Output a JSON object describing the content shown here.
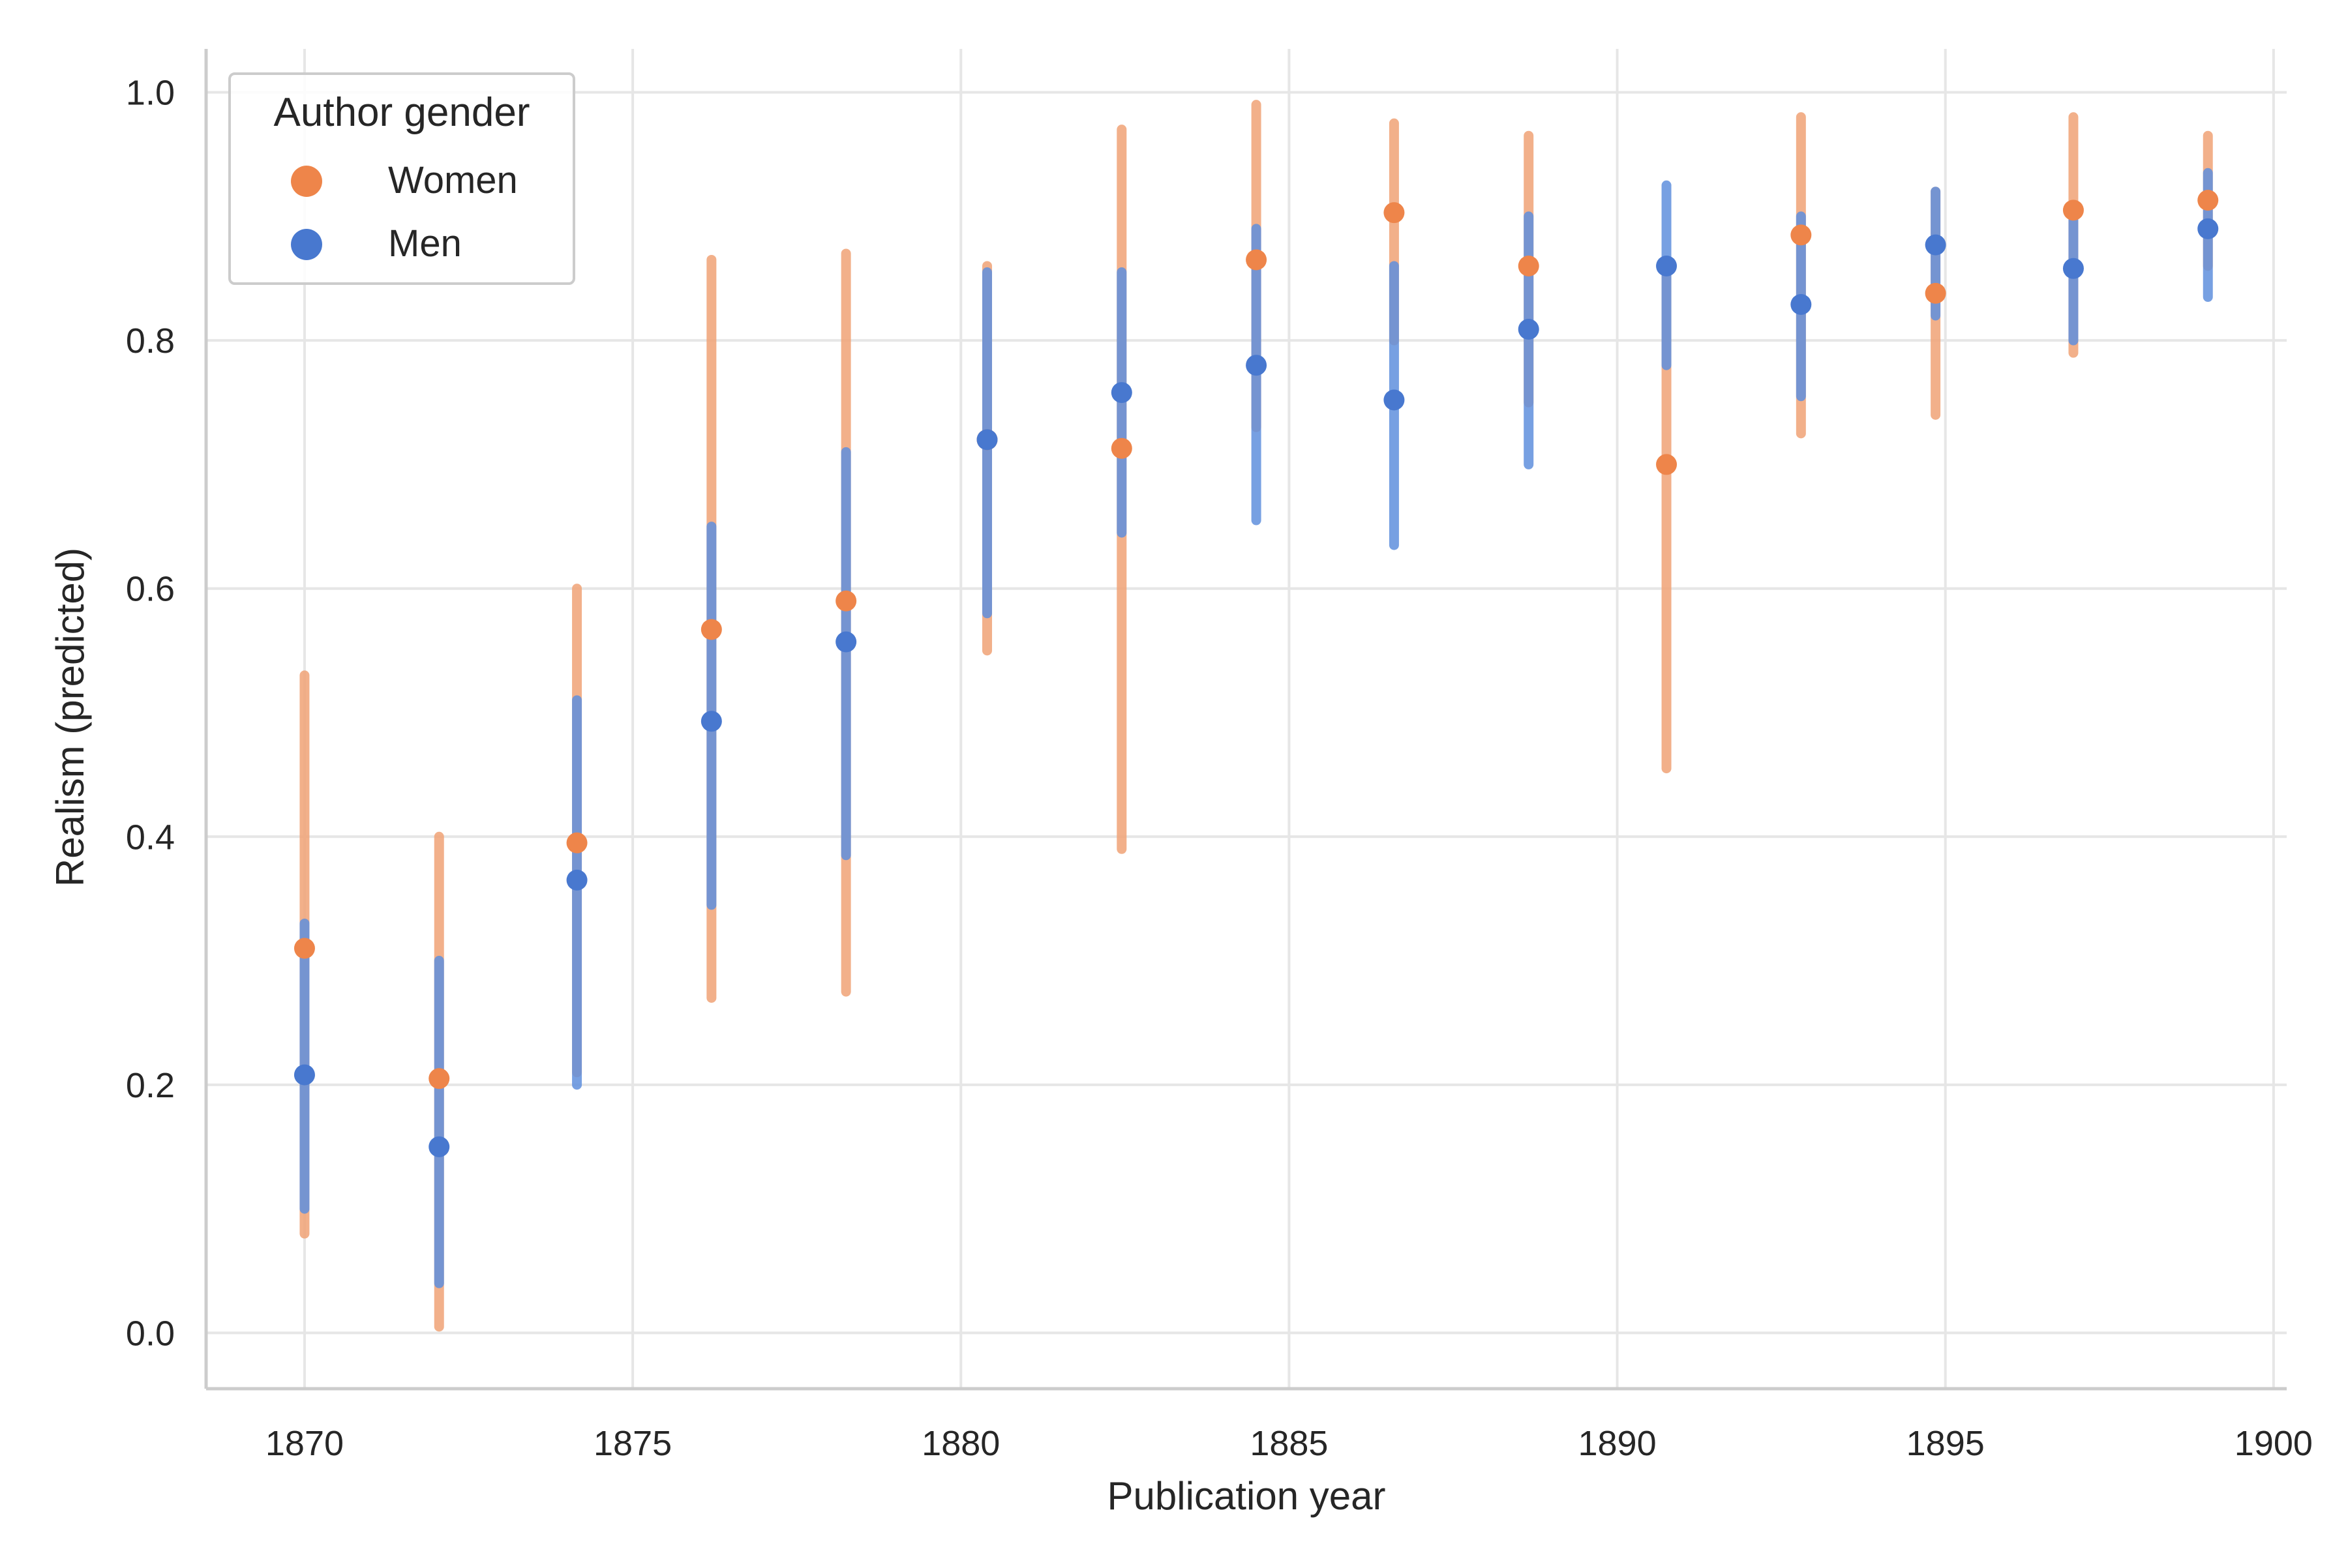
{
  "chart_data": {
    "type": "scatter",
    "title": "",
    "xlabel": "Publication year",
    "ylabel": "Realism (predicted)",
    "xlim": [
      1868.5,
      1900.2
    ],
    "ylim": [
      -0.045,
      1.035
    ],
    "xticks": [
      1870,
      1875,
      1880,
      1885,
      1890,
      1895,
      1900
    ],
    "yticks": [
      0.0,
      0.2,
      0.4,
      0.6,
      0.8,
      1.0
    ],
    "xtick_labels": [
      "1870",
      "1875",
      "1880",
      "1885",
      "1890",
      "1895",
      "1900"
    ],
    "ytick_labels": [
      "0.0",
      "0.2",
      "0.4",
      "0.6",
      "0.8",
      "1.0"
    ],
    "grid": true,
    "legend": {
      "title": "Author gender",
      "placement": "top-left"
    },
    "series": [
      {
        "name": "Women",
        "color": "#ee854a",
        "bar_color": "#f0a276",
        "points": [
          {
            "x": 1870.0,
            "y": 0.31,
            "lo": 0.08,
            "hi": 0.53
          },
          {
            "x": 1872.05,
            "y": 0.205,
            "lo": 0.005,
            "hi": 0.4
          },
          {
            "x": 1874.15,
            "y": 0.395,
            "lo": 0.21,
            "hi": 0.6
          },
          {
            "x": 1876.2,
            "y": 0.567,
            "lo": 0.27,
            "hi": 0.865
          },
          {
            "x": 1878.25,
            "y": 0.59,
            "lo": 0.275,
            "hi": 0.87
          },
          {
            "x": 1880.4,
            "y": 0.72,
            "lo": 0.55,
            "hi": 0.86
          },
          {
            "x": 1882.45,
            "y": 0.713,
            "lo": 0.39,
            "hi": 0.97
          },
          {
            "x": 1884.5,
            "y": 0.865,
            "lo": 0.73,
            "hi": 0.99
          },
          {
            "x": 1886.6,
            "y": 0.903,
            "lo": 0.8,
            "hi": 0.975
          },
          {
            "x": 1888.65,
            "y": 0.86,
            "lo": 0.75,
            "hi": 0.965
          },
          {
            "x": 1890.75,
            "y": 0.7,
            "lo": 0.455,
            "hi": 0.86
          },
          {
            "x": 1892.8,
            "y": 0.885,
            "lo": 0.725,
            "hi": 0.98
          },
          {
            "x": 1894.85,
            "y": 0.838,
            "lo": 0.74,
            "hi": 0.92
          },
          {
            "x": 1896.95,
            "y": 0.905,
            "lo": 0.79,
            "hi": 0.98
          },
          {
            "x": 1899.0,
            "y": 0.913,
            "lo": 0.86,
            "hi": 0.965
          }
        ]
      },
      {
        "name": "Men",
        "color": "#4878cf",
        "bar_color": "#5f8fdd",
        "points": [
          {
            "x": 1870.0,
            "y": 0.208,
            "lo": 0.1,
            "hi": 0.33
          },
          {
            "x": 1872.05,
            "y": 0.15,
            "lo": 0.04,
            "hi": 0.3
          },
          {
            "x": 1874.15,
            "y": 0.365,
            "lo": 0.2,
            "hi": 0.51
          },
          {
            "x": 1876.2,
            "y": 0.493,
            "lo": 0.345,
            "hi": 0.65
          },
          {
            "x": 1878.25,
            "y": 0.557,
            "lo": 0.385,
            "hi": 0.71
          },
          {
            "x": 1880.4,
            "y": 0.72,
            "lo": 0.58,
            "hi": 0.855
          },
          {
            "x": 1882.45,
            "y": 0.758,
            "lo": 0.645,
            "hi": 0.855
          },
          {
            "x": 1884.5,
            "y": 0.78,
            "lo": 0.655,
            "hi": 0.89
          },
          {
            "x": 1886.6,
            "y": 0.752,
            "lo": 0.635,
            "hi": 0.86
          },
          {
            "x": 1888.65,
            "y": 0.809,
            "lo": 0.7,
            "hi": 0.9
          },
          {
            "x": 1890.75,
            "y": 0.86,
            "lo": 0.78,
            "hi": 0.925
          },
          {
            "x": 1892.8,
            "y": 0.829,
            "lo": 0.755,
            "hi": 0.9
          },
          {
            "x": 1894.85,
            "y": 0.877,
            "lo": 0.82,
            "hi": 0.92
          },
          {
            "x": 1896.95,
            "y": 0.858,
            "lo": 0.8,
            "hi": 0.905
          },
          {
            "x": 1899.0,
            "y": 0.89,
            "lo": 0.835,
            "hi": 0.935
          }
        ]
      }
    ]
  }
}
